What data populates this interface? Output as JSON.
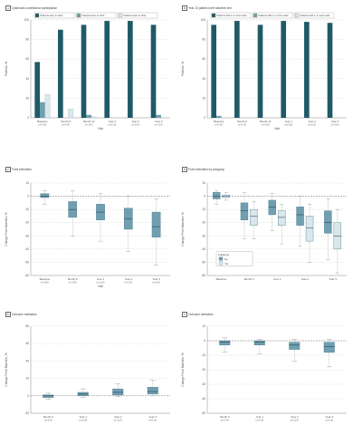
{
  "colors": {
    "dark": "#1f5a66",
    "mid": "#6f9fb0",
    "light": "#d9e7ec",
    "grid": "#bbbbbb"
  },
  "chart_data": [
    {
      "id": "A",
      "type": "bar",
      "title": "Cystinosis surveillance participation",
      "ylabel": "Patients, %",
      "xlabel": "Visit",
      "ylim": [
        0,
        100
      ],
      "yticks": [
        0,
        20,
        40,
        60,
        80,
        100
      ],
      "categories": [
        "Baseline",
        "Month 6",
        "Month 12",
        "Year 1",
        "Year 2",
        "Year 3"
      ],
      "category_n": [
        "(n=136)",
        "(n=134)",
        "(n=129)",
        "(n=128)",
        "(n=124)",
        "(n=116)"
      ],
      "series": [
        {
          "name": "Patients seen in clinic",
          "values": [
            57,
            90,
            95,
            99,
            99,
            95
          ]
        },
        {
          "name": "Patients seen in clinic",
          "values": [
            16,
            0,
            3,
            0,
            0,
            3
          ]
        },
        {
          "name": "Patients seen in clinic",
          "values": [
            24,
            9,
            1,
            0,
            0,
            0
          ]
        }
      ],
      "legend_position": "top"
    },
    {
      "id": "B",
      "type": "bar",
      "title": "Year 10 patient-level baseline test",
      "ylabel": "Patients, %",
      "xlabel": "Visit",
      "ylim": [
        0,
        100
      ],
      "yticks": [
        0,
        20,
        40,
        60,
        80,
        100
      ],
      "categories": [
        "Baseline",
        "Month 6",
        "Month 12",
        "Year 1",
        "Year 2",
        "Year 3"
      ],
      "category_n": [
        "(n=136)",
        "(n=134)",
        "(n=129)",
        "(n=128)",
        "(n=124)",
        "(n=116)"
      ],
      "series": [
        {
          "name": "Patients with 1 or more visits",
          "values": [
            95,
            99,
            95,
            99,
            98,
            97
          ]
        },
        {
          "name": "Patients with 1 or more visits",
          "values": [
            2,
            0,
            0,
            0,
            0,
            0
          ]
        },
        {
          "name": "Patients with 1 or more visits",
          "values": [
            0,
            0,
            0,
            0,
            0,
            0
          ]
        }
      ],
      "legend_position": "top"
    },
    {
      "id": "C",
      "type": "box",
      "title": "Point estimates",
      "ylabel": "Change From Baseline, %",
      "xlabel": "Visit",
      "ylim": [
        -60,
        10
      ],
      "yticks": [
        -60,
        -50,
        -40,
        -30,
        -20,
        -10,
        0,
        10
      ],
      "categories": [
        "Baseline",
        "Month 6",
        "Year 1",
        "Year 2",
        "Year 3"
      ],
      "category_n": [
        "(n=136)",
        "(n=134)",
        "(n=128)",
        "(n=124)",
        "(n=116)"
      ],
      "boxes": [
        {
          "q1": -1,
          "median": 0,
          "q3": 2,
          "min": -6,
          "max": 4
        },
        {
          "q1": -16,
          "median": -10,
          "q3": -4,
          "min": -30,
          "max": 4
        },
        {
          "q1": -18,
          "median": -12,
          "q3": -6,
          "min": -34,
          "max": 2
        },
        {
          "q1": -25,
          "median": -17,
          "q3": -9,
          "min": -42,
          "max": 0
        },
        {
          "q1": -31,
          "median": -23,
          "q3": -12,
          "min": -52,
          "max": -2
        }
      ],
      "reference_line": 0
    },
    {
      "id": "D",
      "type": "box",
      "title": "Point estimates by subgroup",
      "ylabel": "Change From Baseline, %",
      "ylim": [
        -60,
        10
      ],
      "yticks": [
        -60,
        -50,
        -40,
        -30,
        -20,
        -10,
        0,
        10
      ],
      "categories": [
        "Baseline",
        "Month 6",
        "Year 1",
        "Year 2",
        "Year 3"
      ],
      "legend_title": "Subgroup",
      "legend_labels": [
        "No",
        "Yes"
      ],
      "groups": [
        {
          "boxes": [
            {
              "q1": -2,
              "median": 0,
              "q3": 3,
              "min": -6,
              "max": 4
            },
            {
              "q1": -18,
              "median": -11,
              "q3": -5,
              "min": -32,
              "max": 3
            },
            {
              "q1": -14,
              "median": -8,
              "q3": -3,
              "min": -26,
              "max": 2
            },
            {
              "q1": -22,
              "median": -14,
              "q3": -8,
              "min": -38,
              "max": 0
            },
            {
              "q1": -28,
              "median": -20,
              "q3": -11,
              "min": -48,
              "max": -2
            }
          ]
        },
        {
          "boxes": [
            {
              "q1": -1,
              "median": 0,
              "q3": 1,
              "min": -3,
              "max": 3
            },
            {
              "q1": -22,
              "median": -15,
              "q3": -10,
              "min": -32,
              "max": -4
            },
            {
              "q1": -22,
              "median": -16,
              "q3": -11,
              "min": -36,
              "max": -6
            },
            {
              "q1": -34,
              "median": -24,
              "q3": -15,
              "min": -50,
              "max": -6
            },
            {
              "q1": -40,
              "median": -30,
              "q3": -20,
              "min": -58,
              "max": -10
            }
          ]
        }
      ],
      "reference_line": 0
    },
    {
      "id": "E",
      "type": "box",
      "title": "Outcome estimates",
      "ylabel": "Change From Baseline, %",
      "ylim": [
        -20,
        80
      ],
      "yticks": [
        -20,
        0,
        20,
        40,
        60,
        80
      ],
      "categories": [
        "Month 6",
        "Year 1",
        "Year 2",
        "Year 3"
      ],
      "category_n": [
        "(n=134)",
        "(n=128)",
        "(n=124)",
        "(n=116)"
      ],
      "boxes": [
        {
          "q1": -2,
          "median": 0,
          "q3": 1,
          "min": -4,
          "max": 3
        },
        {
          "q1": 0,
          "median": 2,
          "q3": 4,
          "min": -2,
          "max": 8
        },
        {
          "q1": 1,
          "median": 4,
          "q3": 8,
          "min": -1,
          "max": 14
        },
        {
          "q1": 2,
          "median": 5,
          "q3": 10,
          "min": 0,
          "max": 18
        }
      ],
      "reference_line": 0
    },
    {
      "id": "F",
      "type": "box",
      "title": "Outcome estimates",
      "ylabel": "Change From Baseline, %",
      "ylim": [
        -50,
        10
      ],
      "yticks": [
        -50,
        -40,
        -30,
        -20,
        -10,
        0,
        10
      ],
      "categories": [
        "Month 6",
        "Year 1",
        "Year 2",
        "Year 3"
      ],
      "category_n": [
        "(n=134)",
        "(n=128)",
        "(n=124)",
        "(n=116)"
      ],
      "boxes": [
        {
          "q1": -3,
          "median": -1,
          "q3": 0,
          "min": -8,
          "max": 2
        },
        {
          "q1": -3,
          "median": -1,
          "q3": 0,
          "min": -9,
          "max": 1
        },
        {
          "q1": -6,
          "median": -3,
          "q3": -1,
          "min": -14,
          "max": 1
        },
        {
          "q1": -8,
          "median": -4,
          "q3": -1,
          "min": -18,
          "max": 1
        }
      ],
      "reference_line": 0
    }
  ]
}
